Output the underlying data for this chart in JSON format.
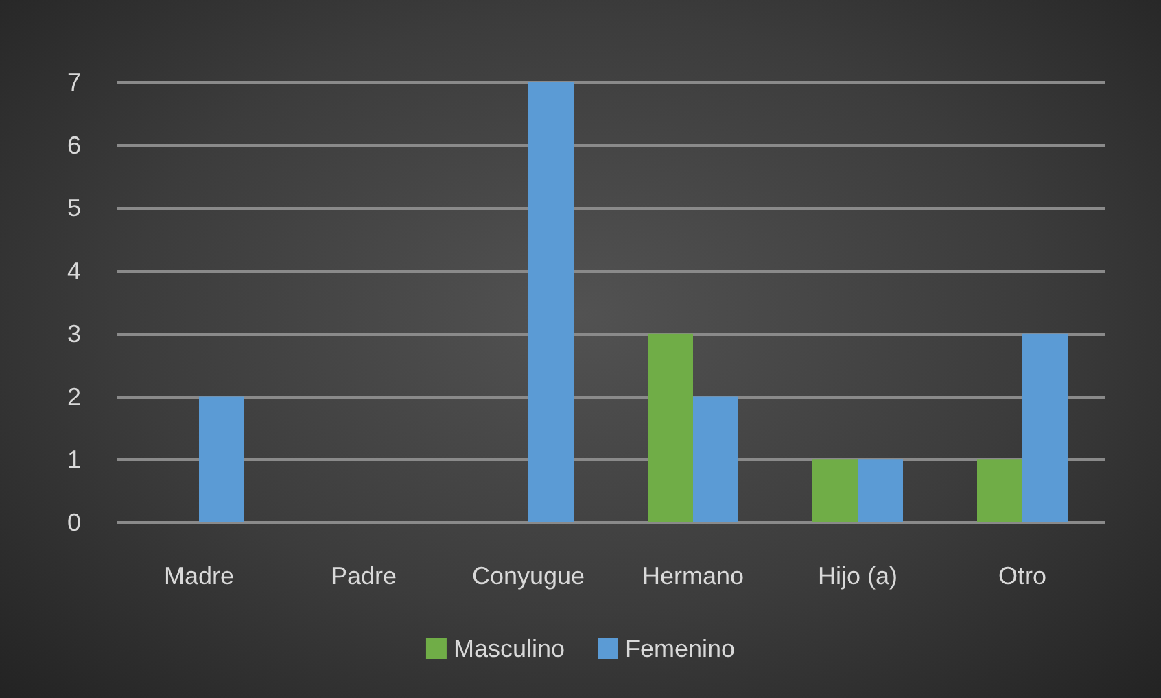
{
  "chart_data": {
    "type": "bar",
    "categories": [
      "Madre",
      "Padre",
      "Conyugue",
      "Hermano",
      "Hijo (a)",
      "Otro"
    ],
    "series": [
      {
        "name": "Masculino",
        "color": "#70ad47",
        "values": [
          0,
          0,
          0,
          3,
          1,
          1
        ]
      },
      {
        "name": "Femenino",
        "color": "#5b9bd5",
        "values": [
          2,
          0,
          7,
          2,
          1,
          3
        ]
      }
    ],
    "ylim": [
      0,
      7
    ],
    "yticks": [
      0,
      1,
      2,
      3,
      4,
      5,
      6,
      7
    ],
    "grid": "y",
    "legend": "bottom"
  }
}
